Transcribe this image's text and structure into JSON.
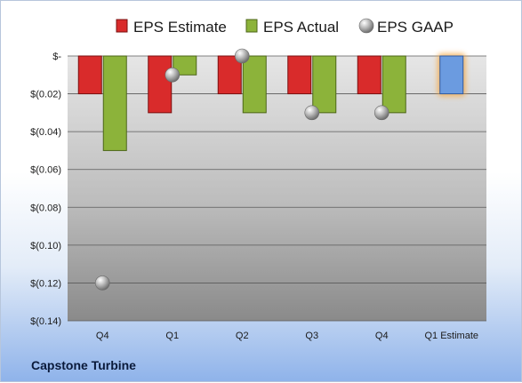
{
  "chart_data": {
    "type": "bar",
    "categories": [
      "Q4",
      "Q1",
      "Q2",
      "Q3",
      "Q4",
      "Q1 Estimate"
    ],
    "series": [
      {
        "name": "EPS Estimate",
        "values": [
          -0.02,
          -0.03,
          -0.02,
          -0.02,
          -0.02,
          null
        ],
        "color": "#d92b2b"
      },
      {
        "name": "EPS Actual",
        "values": [
          -0.05,
          -0.01,
          -0.03,
          -0.03,
          -0.03,
          null
        ],
        "color": "#8cb33a"
      },
      {
        "name": "EPS GAAP",
        "values": [
          -0.12,
          -0.01,
          0.0,
          -0.03,
          -0.03,
          null
        ],
        "color": "#a8a8a8"
      }
    ],
    "forecast": {
      "category": "Q1 Estimate",
      "value": -0.02,
      "color": "#6b9be0",
      "glow": "#f5a742"
    },
    "ylim": [
      -0.14,
      0.0
    ],
    "yticks": [
      0,
      -0.02,
      -0.04,
      -0.06,
      -0.08,
      -0.1,
      -0.12,
      -0.14
    ],
    "ytick_labels": [
      "$-",
      "$(0.02)",
      "$(0.04)",
      "$(0.06)",
      "$(0.08)",
      "$(0.10)",
      "$(0.12)",
      "$(0.14)"
    ],
    "legend_position": "top",
    "grid": true
  },
  "footer": {
    "company": "Capstone Turbine"
  }
}
